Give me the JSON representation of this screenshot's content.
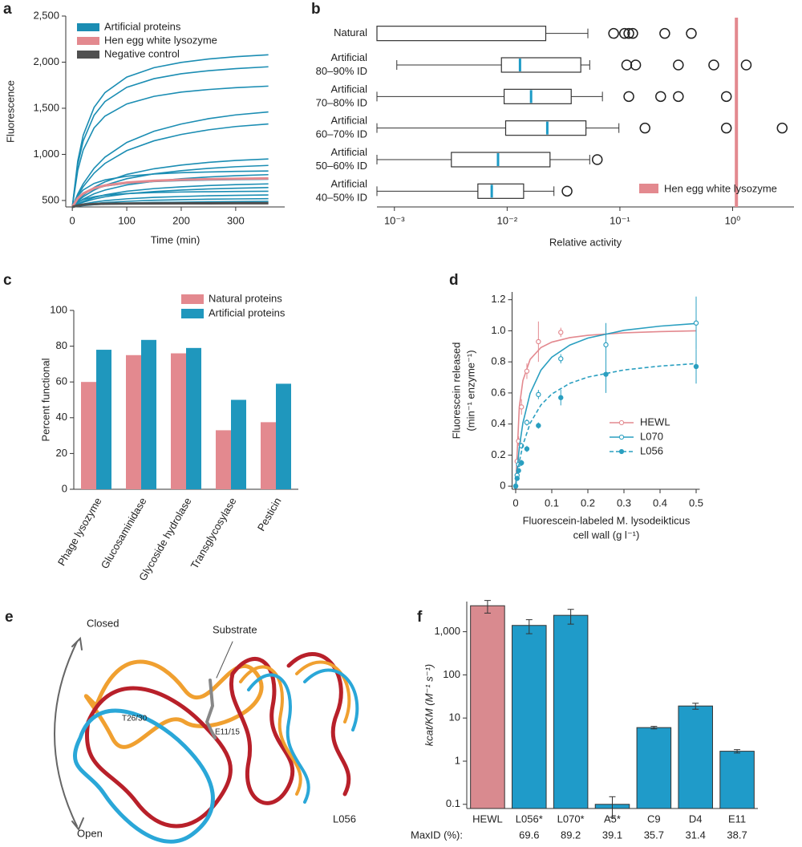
{
  "chart_data": [
    {
      "panel": "a",
      "type": "line",
      "ylabel": "Fluorescence",
      "xlabel": "Time (min)",
      "x": [
        0,
        10,
        20,
        40,
        60,
        100,
        150,
        200,
        250,
        300,
        360
      ],
      "xlim": [
        -12,
        390
      ],
      "ylim": [
        430,
        2500
      ],
      "xticks": [
        0,
        100,
        200,
        300
      ],
      "yticks": [
        500,
        {
          "value": 1000,
          "label": "1,000"
        },
        {
          "value": 1500,
          "label": "1,500"
        },
        {
          "value": 2000,
          "label": "2,000"
        },
        {
          "value": 2500,
          "label": "2,500"
        }
      ],
      "series": [
        {
          "name": "Artificial proteins",
          "color": "#1b8db3",
          "values": [
            [
              430,
              928,
              1207,
              1509,
              1670,
              1838,
              1940,
              1997,
              2034,
              2059,
              2080
            ],
            [
              430,
              889,
              1146,
              1424,
              1573,
              1727,
              1821,
              1874,
              1907,
              1930,
              1950
            ],
            [
              430,
              826,
              1047,
              1287,
              1415,
              1547,
              1629,
              1675,
              1703,
              1723,
              1740
            ],
            [
              430,
              570,
              681,
              849,
              970,
              1129,
              1251,
              1329,
              1387,
              1428,
              1460
            ],
            [
              430,
              552,
              650,
              796,
              902,
              1041,
              1147,
              1216,
              1266,
              1302,
              1330
            ],
            [
              430,
              501,
              557,
              642,
              702,
              783,
              844,
              884,
              913,
              934,
              950
            ],
            [
              430,
              491,
              540,
              613,
              666,
              736,
              789,
              823,
              848,
              866,
              880
            ],
            [
              430,
              548,
              614,
              685,
              723,
              763,
              787,
              801,
              809,
              815,
              820
            ],
            [
              430,
              478,
              515,
              572,
              613,
              668,
              709,
              736,
              755,
              769,
              780
            ],
            [
              430,
              521,
              571,
              626,
              656,
              686,
              705,
              715,
              722,
              726,
              730
            ],
            [
              430,
              464,
              491,
              532,
              561,
              600,
              629,
              648,
              662,
              672,
              680
            ],
            [
              430,
              459,
              481,
              515,
              540,
              573,
              597,
              613,
              625,
              633,
              640
            ],
            [
              430,
              481,
              510,
              541,
              558,
              575,
              586,
              592,
              595,
              598,
              600
            ],
            [
              430,
              448,
              462,
              483,
              498,
              518,
              534,
              543,
              551,
              556,
              560
            ],
            [
              430,
              442,
              452,
              467,
              477,
              491,
              502,
              509,
              514,
              517,
              520
            ],
            [
              430,
              438,
              445,
              454,
              461,
              471,
              478,
              482,
              486,
              488,
              490
            ]
          ]
        },
        {
          "name": "Hen egg white lysozyme",
          "color": "#e3898f",
          "values": [
            [
              430,
              524,
              576,
              633,
              663,
              694,
              714,
              725,
              731,
              736,
              740
            ]
          ]
        },
        {
          "name": "Negative control",
          "color": "#505050",
          "values": [
            [
              430,
              445,
              455,
              462,
              465,
              467,
              468,
              469,
              469,
              470,
              470
            ]
          ]
        }
      ]
    },
    {
      "panel": "b",
      "type": "box",
      "xlabel": "Relative activity",
      "xscale": "log",
      "xlim": [
        0.0007,
        3.5
      ],
      "xticks": [
        {
          "value": 0.001,
          "label": "10⁻³"
        },
        {
          "value": 0.01,
          "label": "10⁻²"
        },
        {
          "value": 0.1,
          "label": "10⁻¹"
        },
        {
          "value": 1,
          "label": "10⁰"
        }
      ],
      "median_color": "#1d9bc6",
      "categories": [
        [
          "Natural"
        ],
        [
          "Artificial",
          "80–90% ID"
        ],
        [
          "Artificial",
          "70–80% ID"
        ],
        [
          "Artificial",
          "60–70% ID"
        ],
        [
          "Artificial",
          "50–60% ID"
        ],
        [
          "Artificial",
          "40–50% ID"
        ]
      ],
      "boxes": [
        {
          "whislo": 0.0007,
          "q1": 0.0007,
          "med": null,
          "q3": 0.022,
          "whishi": 0.052,
          "fliers": [
            0.088,
            0.11,
            0.12,
            0.13,
            0.25,
            0.43
          ]
        },
        {
          "whislo": 0.00105,
          "q1": 0.0089,
          "med": 0.013,
          "q3": 0.045,
          "whishi": 0.054,
          "fliers": [
            0.115,
            0.138,
            0.33,
            0.68,
            1.32
          ]
        },
        {
          "whislo": 0.0007,
          "q1": 0.0094,
          "med": 0.0163,
          "q3": 0.037,
          "whishi": 0.07,
          "fliers": [
            0.12,
            0.23,
            0.33,
            0.88
          ]
        },
        {
          "whislo": 0.0007,
          "q1": 0.0097,
          "med": 0.0227,
          "q3": 0.05,
          "whishi": 0.098,
          "fliers": [
            0.167,
            0.88,
            2.75
          ]
        },
        {
          "whislo": 0.0007,
          "q1": 0.0032,
          "med": 0.0083,
          "q3": 0.024,
          "whishi": 0.054,
          "fliers": [
            0.063
          ]
        },
        {
          "whislo": 0.0007,
          "q1": 0.0055,
          "med": 0.0073,
          "q3": 0.014,
          "whishi": 0.026,
          "fliers": [
            0.034
          ]
        }
      ],
      "reference": {
        "name": "Hen egg white lysozyme",
        "value": 1.08,
        "color": "#e3898f"
      }
    },
    {
      "panel": "c",
      "type": "bar",
      "ylabel": "Percent functional",
      "categories": [
        "Phage lysozyme",
        "Glucosaminidase",
        "Glycoside hydrolase",
        "Transglycosylase",
        "Pesticin"
      ],
      "ylim": [
        0,
        100
      ],
      "yticks": [
        0,
        20,
        40,
        60,
        80,
        100
      ],
      "series": [
        {
          "name": "Natural proteins",
          "color": "#e3898f",
          "values": [
            60,
            75,
            76,
            33,
            37.5
          ]
        },
        {
          "name": "Artificial proteins",
          "color": "#1f97bd",
          "values": [
            78,
            83.5,
            79,
            50,
            59
          ]
        }
      ]
    },
    {
      "panel": "d",
      "type": "line",
      "ylabel": [
        "Fluorescein released",
        "(min⁻¹ enzyme⁻¹)"
      ],
      "xlabel": [
        "Fluorescein-labeled M. lysodeikticus",
        "cell wall (g l⁻¹)"
      ],
      "xlim": [
        -0.01,
        0.51
      ],
      "ylim": [
        -0.02,
        1.25
      ],
      "xticks": [
        0,
        0.1,
        0.2,
        0.3,
        0.4,
        0.5
      ],
      "yticks": [
        0,
        0.2,
        0.4,
        0.6,
        0.8,
        {
          "value": 1,
          "label": "1.0"
        },
        1.2
      ],
      "fit_x": [
        0,
        0.01,
        0.02,
        0.04,
        0.07,
        0.1,
        0.15,
        0.2,
        0.3,
        0.4,
        0.5
      ],
      "series": [
        {
          "name": "HEWL",
          "color": "#e3898f",
          "dash": false,
          "x": [
            0,
            0.004,
            0.008,
            0.016,
            0.031,
            0.063,
            0.125
          ],
          "values": [
            0,
            0.16,
            0.29,
            0.51,
            0.74,
            0.93,
            0.99
          ],
          "errors": [
            0,
            0.03,
            0.03,
            0.05,
            0.05,
            0.13,
            0.03
          ],
          "fit_values": [
            0,
            0.51,
            0.68,
            0.816,
            0.8925,
            0.927,
            0.956,
            0.971,
            0.987,
            0.995,
            1.0
          ]
        },
        {
          "name": "L070",
          "color": "#2a9fc0",
          "dash": false,
          "x": [
            0,
            0.004,
            0.008,
            0.016,
            0.031,
            0.063,
            0.125,
            0.25,
            0.5
          ],
          "values": [
            0,
            0.07,
            0.14,
            0.26,
            0.41,
            0.59,
            0.82,
            0.91,
            1.05
          ],
          "errors": [
            0,
            0.01,
            0.01,
            0.02,
            0.02,
            0.03,
            0.03,
            0.14,
            0.17
          ],
          "fit_values": [
            0,
            0.249,
            0.407,
            0.597,
            0.747,
            0.83,
            0.908,
            0.953,
            1.003,
            1.03,
            1.047
          ]
        },
        {
          "name": "L056",
          "color": "#2a9fc0",
          "dash": true,
          "x": [
            0,
            0.004,
            0.008,
            0.016,
            0.031,
            0.063,
            0.125,
            0.25,
            0.5
          ],
          "values": [
            0,
            0.05,
            0.1,
            0.15,
            0.24,
            0.39,
            0.57,
            0.72,
            0.77
          ],
          "errors": [
            0,
            0.01,
            0.01,
            0.02,
            0.02,
            0.02,
            0.05,
            0.12,
            0.11
          ],
          "fit_values": [
            0,
            0.156,
            0.265,
            0.405,
            0.523,
            0.593,
            0.662,
            0.702,
            0.748,
            0.773,
            0.789
          ]
        }
      ]
    },
    {
      "panel": "f",
      "type": "bar",
      "yscale": "log",
      "ylabel": "kcat/KM (M⁻¹ s⁻¹)",
      "categories": [
        "HEWL",
        "L056*",
        "L070*",
        "A5*",
        "C9",
        "D4",
        "E11"
      ],
      "values": [
        4000,
        1400,
        2400,
        0.1,
        6,
        19,
        1.7
      ],
      "errors": [
        1300,
        500,
        900,
        0.05,
        0.4,
        3,
        0.15
      ],
      "colors": [
        "#d98a8f",
        "#1f9bc9",
        "#1f9bc9",
        "#1f9bc9",
        "#1f9bc9",
        "#1f9bc9",
        "#1f9bc9"
      ],
      "ylim": [
        0.08,
        5000
      ],
      "yticks": [
        0.1,
        1,
        10,
        100,
        {
          "value": 1000,
          "label": "1,000"
        }
      ],
      "maxid_label": "MaxID (%):",
      "maxid": [
        null,
        69.6,
        89.2,
        39.1,
        35.7,
        31.4,
        38.7
      ]
    }
  ],
  "structure_panel": {
    "panel": "e",
    "labels": {
      "closed": "Closed",
      "open": "Open",
      "substrate": "Substrate",
      "t26": "T26/30",
      "e11": "E11/15",
      "l056": "L056"
    }
  }
}
